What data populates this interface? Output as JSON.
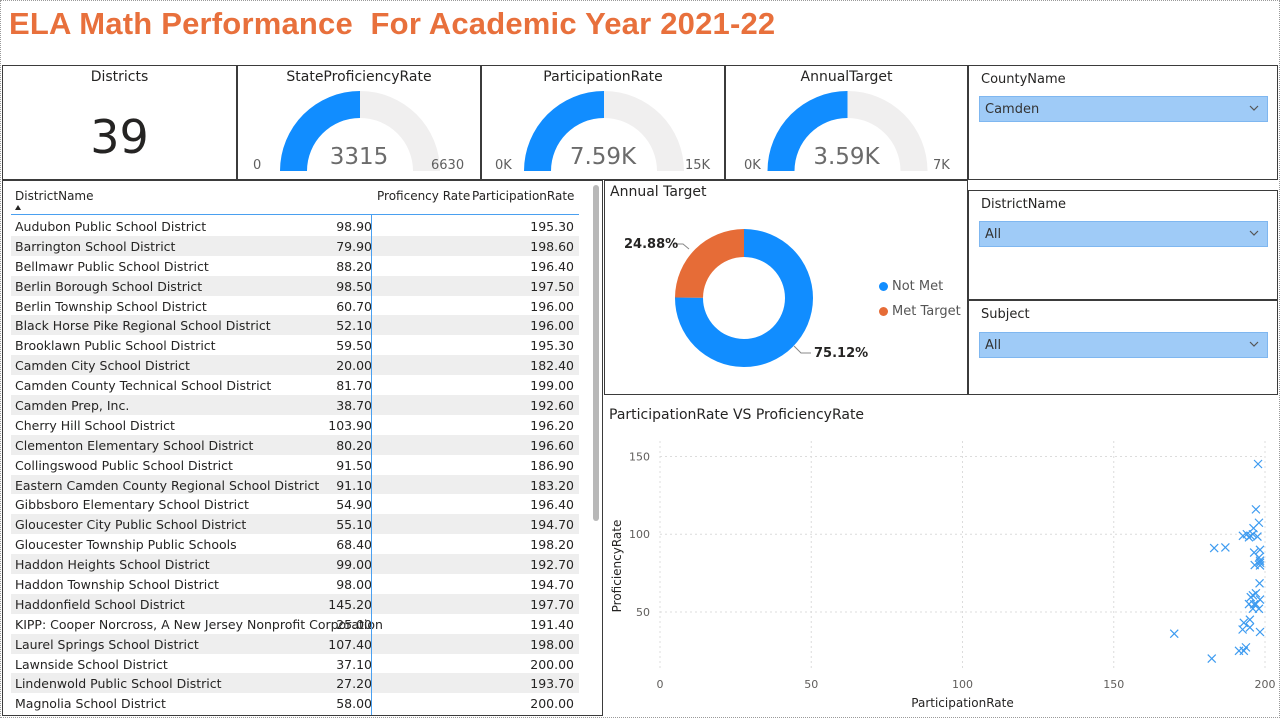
{
  "title": "ELA Math Performance  For Academic Year 2021-22",
  "colors": {
    "accent": "#118dff",
    "orange": "#e66c37",
    "title": "#e8703c",
    "track": "#f0efef",
    "selection": "#9fcbf7"
  },
  "kpi": {
    "label": "Districts",
    "value": "39"
  },
  "gauges": [
    {
      "title": "StateProficiencyRate",
      "value_text": "3315",
      "min_text": "0",
      "max_text": "6630",
      "fraction": 0.5
    },
    {
      "title": "ParticipationRate",
      "value_text": "7.59K",
      "min_text": "0K",
      "max_text": "15K",
      "fraction": 0.5
    },
    {
      "title": "AnnualTarget",
      "value_text": "3.59K",
      "min_text": "0K",
      "max_text": "7K",
      "fraction": 0.5
    }
  ],
  "slicers": {
    "county": {
      "title": "CountyName",
      "value": "Camden",
      "icon": "chevron-down-icon"
    },
    "district": {
      "title": "DistrictName",
      "value": "All",
      "icon": "chevron-down-icon"
    },
    "subject": {
      "title": "Subject",
      "value": "All",
      "icon": "chevron-down-icon"
    }
  },
  "table": {
    "columns": [
      "DistrictName",
      "Proficency Rate",
      "ParticipationRate"
    ],
    "rows": [
      [
        "Audubon Public School District",
        "98.90",
        "195.30"
      ],
      [
        "Barrington School District",
        "79.90",
        "198.60"
      ],
      [
        "Bellmawr Public School District",
        "88.20",
        "196.40"
      ],
      [
        "Berlin Borough School District",
        "98.50",
        "197.50"
      ],
      [
        "Berlin Township School District",
        "60.70",
        "196.00"
      ],
      [
        "Black Horse Pike Regional School District",
        "52.10",
        "196.00"
      ],
      [
        "Brooklawn Public School District",
        "59.50",
        "195.30"
      ],
      [
        "Camden City School District",
        "20.00",
        "182.40"
      ],
      [
        "Camden County Technical School District",
        "81.70",
        "199.00"
      ],
      [
        "Camden Prep, Inc.",
        "38.70",
        "192.60"
      ],
      [
        "Cherry Hill School District",
        "103.90",
        "196.20"
      ],
      [
        "Clementon Elementary School District",
        "80.20",
        "196.60"
      ],
      [
        "Collingswood Public School District",
        "91.50",
        "186.90"
      ],
      [
        "Eastern Camden County Regional School District",
        "91.10",
        "183.20"
      ],
      [
        "Gibbsboro Elementary School District",
        "54.90",
        "196.40"
      ],
      [
        "Gloucester City Public School District",
        "55.10",
        "194.70"
      ],
      [
        "Gloucester Township Public Schools",
        "68.40",
        "198.20"
      ],
      [
        "Haddon Heights School District",
        "99.00",
        "192.70"
      ],
      [
        "Haddon Township School District",
        "98.00",
        "194.70"
      ],
      [
        "Haddonfield School District",
        "145.20",
        "197.70"
      ],
      [
        "KIPP: Cooper Norcross, A New Jersey Nonprofit Corporation",
        "25.00",
        "191.40"
      ],
      [
        "Laurel Springs School District",
        "107.40",
        "198.00"
      ],
      [
        "Lawnside School District",
        "37.10",
        "200.00"
      ],
      [
        "Lindenwold Public School District",
        "27.20",
        "193.70"
      ],
      [
        "Magnolia School District",
        "58.00",
        "200.00"
      ]
    ]
  },
  "donut": {
    "title": "Annual Target",
    "legend": [
      "Not Met",
      "Met Target"
    ],
    "label_not_met": "75.12%",
    "label_met": "24.88%"
  },
  "scatter": {
    "title": "ParticipationRate VS ProficiencyRate",
    "xlabel": "ParticipationRate",
    "ylabel": "ProficiencyRate",
    "xticks": [
      "0",
      "50",
      "100",
      "150",
      "200"
    ],
    "yticks": [
      "50",
      "100",
      "150"
    ]
  },
  "chart_data": [
    {
      "type": "pie",
      "title": "Annual Target",
      "labels": [
        "Not Met",
        "Met Target"
      ],
      "values": [
        75.12,
        24.88
      ],
      "colors": [
        "#118dff",
        "#e66c37"
      ],
      "legend": "right"
    },
    {
      "type": "scatter",
      "title": "ParticipationRate VS ProficiencyRate",
      "xlabel": "ParticipationRate",
      "ylabel": "ProficiencyRate",
      "xlim": [
        0,
        200
      ],
      "ylim": [
        12,
        160
      ],
      "grid": true,
      "points": [
        [
          195.3,
          98.9
        ],
        [
          198.6,
          79.9
        ],
        [
          196.4,
          88.2
        ],
        [
          197.5,
          98.5
        ],
        [
          196.0,
          60.7
        ],
        [
          196.0,
          52.1
        ],
        [
          195.3,
          59.5
        ],
        [
          182.4,
          20.0
        ],
        [
          199.0,
          81.7
        ],
        [
          192.6,
          38.7
        ],
        [
          196.2,
          103.9
        ],
        [
          196.6,
          80.2
        ],
        [
          186.9,
          91.5
        ],
        [
          183.2,
          91.1
        ],
        [
          196.4,
          54.9
        ],
        [
          194.7,
          55.1
        ],
        [
          198.2,
          68.4
        ],
        [
          192.7,
          99.0
        ],
        [
          194.7,
          98.0
        ],
        [
          197.7,
          145.2
        ],
        [
          191.4,
          25.0
        ],
        [
          198.0,
          107.4
        ],
        [
          200.0,
          37.1
        ],
        [
          193.7,
          27.2
        ],
        [
          200.0,
          58.0
        ],
        [
          197.0,
          116.0
        ],
        [
          193.0,
          25.0
        ],
        [
          170.0,
          36.0
        ],
        [
          195.0,
          45.0
        ],
        [
          198.0,
          85.0
        ],
        [
          199.0,
          83.0
        ],
        [
          197.0,
          55.0
        ],
        [
          198.0,
          52.0
        ],
        [
          196.0,
          100.0
        ],
        [
          194.0,
          100.0
        ],
        [
          199.0,
          90.0
        ],
        [
          197.0,
          62.0
        ],
        [
          195.0,
          40.0
        ],
        [
          193.0,
          43.0
        ]
      ]
    }
  ]
}
